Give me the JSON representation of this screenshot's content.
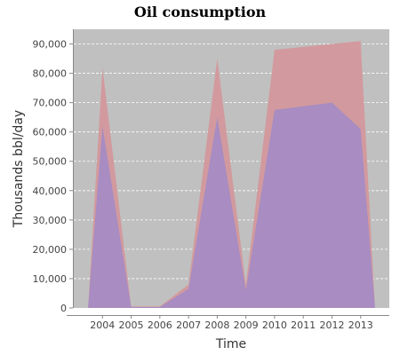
{
  "chart_data": {
    "type": "area",
    "title": "Oil consumption",
    "xlabel": "Time",
    "ylabel": "Thousands bbl/day",
    "ylim": [
      0,
      95000
    ],
    "yticks": [
      0,
      10000,
      20000,
      30000,
      40000,
      50000,
      60000,
      70000,
      80000,
      90000
    ],
    "ytick_labels": [
      "0",
      "10,000",
      "20,000",
      "30,000",
      "40,000",
      "50,000",
      "60,000",
      "70,000",
      "80,000",
      "90,000"
    ],
    "xtick_labels": [
      "2004",
      "2005",
      "2006",
      "2007",
      "2008",
      "2009",
      "2010",
      "2011",
      "2012",
      "2013"
    ],
    "grid": true,
    "colors": {
      "background": "#c0c0c0",
      "grid": "#ffffff",
      "series_back": "#d29a9e",
      "series_front": "#a88cc2",
      "axis": "#888888"
    },
    "series": [
      {
        "x": [
          2003.5,
          2004,
          2005,
          2006,
          2007,
          2008,
          2009,
          2010,
          2012,
          2013,
          2013.5
        ],
        "values": [
          0,
          82000,
          500,
          500,
          8000,
          85000,
          8000,
          88000,
          90000,
          91000,
          0
        ]
      },
      {
        "x": [
          2003.5,
          2004,
          2005,
          2006,
          2007,
          2008,
          2009,
          2010,
          2012,
          2013,
          2013.5
        ],
        "values": [
          0,
          62000,
          300,
          300,
          6500,
          65000,
          6000,
          67500,
          70000,
          61000,
          0
        ]
      }
    ]
  }
}
